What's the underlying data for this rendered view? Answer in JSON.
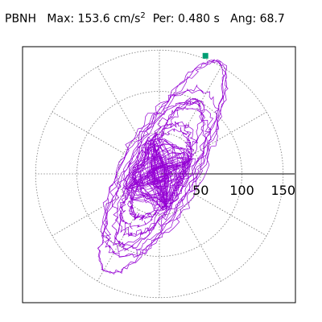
{
  "header": {
    "station": "PBNH",
    "max_label": "Max:",
    "max_value": "153.6 cm/s",
    "max_exp": "2",
    "per_label": "Per:",
    "per_value": "0.480 s",
    "ang_label": "Ang:",
    "ang_value": "68.7"
  },
  "chart_data": {
    "type": "polar-orbit",
    "rmax": 160,
    "radial_ticks": [
      50,
      100,
      150
    ],
    "radial_tick_labels": [
      "50",
      "100",
      "150"
    ],
    "spoke_angles_deg": [
      0,
      30,
      60,
      90,
      120,
      150,
      180,
      210,
      240,
      270,
      300,
      330
    ],
    "grid": true,
    "max_amplitude": 153.6,
    "max_direction_deg": 68.7,
    "orbit": {
      "major_axis_deg": 62,
      "outer_major": 150,
      "outer_minor": 40,
      "outer_shift": 14,
      "mid_major": 115,
      "mid_minor": 50,
      "core_radius": 45,
      "line_color": "#9400d3",
      "peak_color": "#009e73"
    }
  }
}
